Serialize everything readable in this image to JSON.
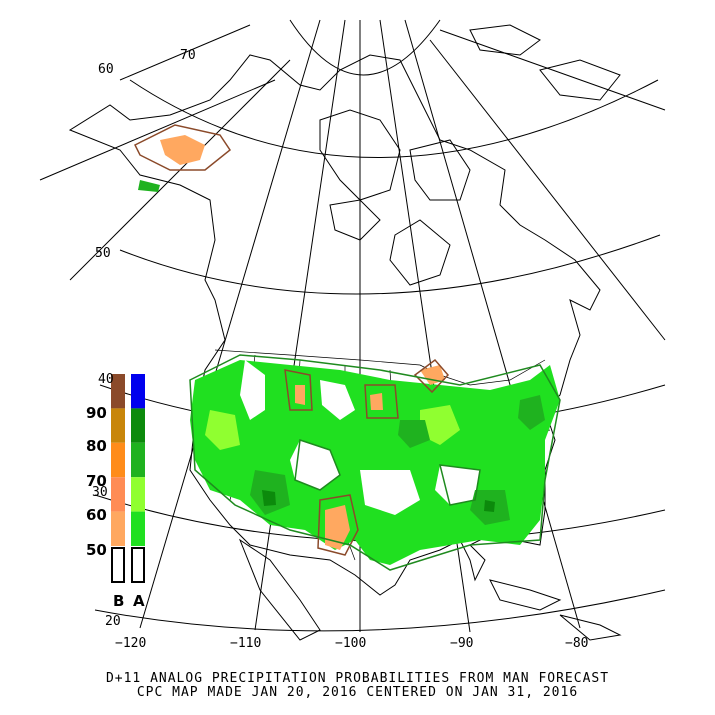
{
  "lat_labels": [
    "70",
    "60",
    "50",
    "40",
    "30",
    "20"
  ],
  "lon_labels": [
    "−120",
    "−110",
    "−100",
    "−90",
    "−80"
  ],
  "legend": {
    "numbers": [
      "90",
      "80",
      "70",
      "60",
      "50"
    ],
    "below_label": "B",
    "above_label": "A",
    "below_colors": [
      "#8b4a2a",
      "#c8860a",
      "#ff8c1a",
      "#ff8c55",
      "#ffa860"
    ],
    "above_colors": [
      "#0000ee",
      "#0c8a0c",
      "#1fb21f",
      "#90ff30",
      "#20e020"
    ]
  },
  "caption": {
    "line1": "D+11 ANALOG PRECIPITATION PROBABILITIES FROM MAN FORECAST",
    "line2": "CPC MAP MADE JAN 20, 2016 CENTERED ON JAN 31, 2016"
  }
}
